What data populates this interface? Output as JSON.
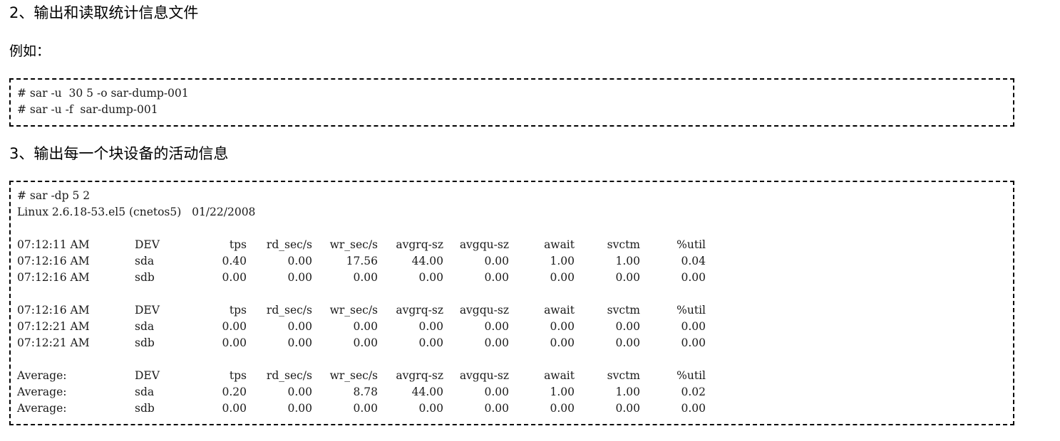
{
  "section2": {
    "heading": "2、输出和读取统计信息文件",
    "example_label": "例如：",
    "commands": [
      "# sar -u  30 5 -o sar-dump-001",
      "# sar -u -f  sar-dump-001"
    ]
  },
  "section3": {
    "heading": "3、输出每一个块设备的活动信息",
    "command": "# sar -dp 5 2",
    "system_line": "Linux 2.6.18-53.el5 (cnetos5)   01/22/2008",
    "columns": [
      "DEV",
      "tps",
      "rd_sec/s",
      "wr_sec/s",
      "avgrq-sz",
      "avgqu-sz",
      "await",
      "svctm",
      "%util"
    ],
    "groups": [
      {
        "header_time": "07:12:11 AM",
        "rows": [
          [
            "07:12:16 AM",
            "sda",
            "0.40",
            "0.00",
            "17.56",
            "44.00",
            "0.00",
            "1.00",
            "1.00",
            "0.04"
          ],
          [
            "07:12:16 AM",
            "sdb",
            "0.00",
            "0.00",
            "0.00",
            "0.00",
            "0.00",
            "0.00",
            "0.00",
            "0.00"
          ]
        ]
      },
      {
        "header_time": "07:12:16 AM",
        "rows": [
          [
            "07:12:21 AM",
            "sda",
            "0.00",
            "0.00",
            "0.00",
            "0.00",
            "0.00",
            "0.00",
            "0.00",
            "0.00"
          ],
          [
            "07:12:21 AM",
            "sdb",
            "0.00",
            "0.00",
            "0.00",
            "0.00",
            "0.00",
            "0.00",
            "0.00",
            "0.00"
          ]
        ]
      },
      {
        "header_time": "Average:",
        "rows": [
          [
            "Average:",
            "sda",
            "0.20",
            "0.00",
            "8.78",
            "44.00",
            "0.00",
            "1.00",
            "1.00",
            "0.02"
          ],
          [
            "Average:",
            "sdb",
            "0.00",
            "0.00",
            "0.00",
            "0.00",
            "0.00",
            "0.00",
            "0.00",
            "0.00"
          ]
        ]
      }
    ]
  }
}
